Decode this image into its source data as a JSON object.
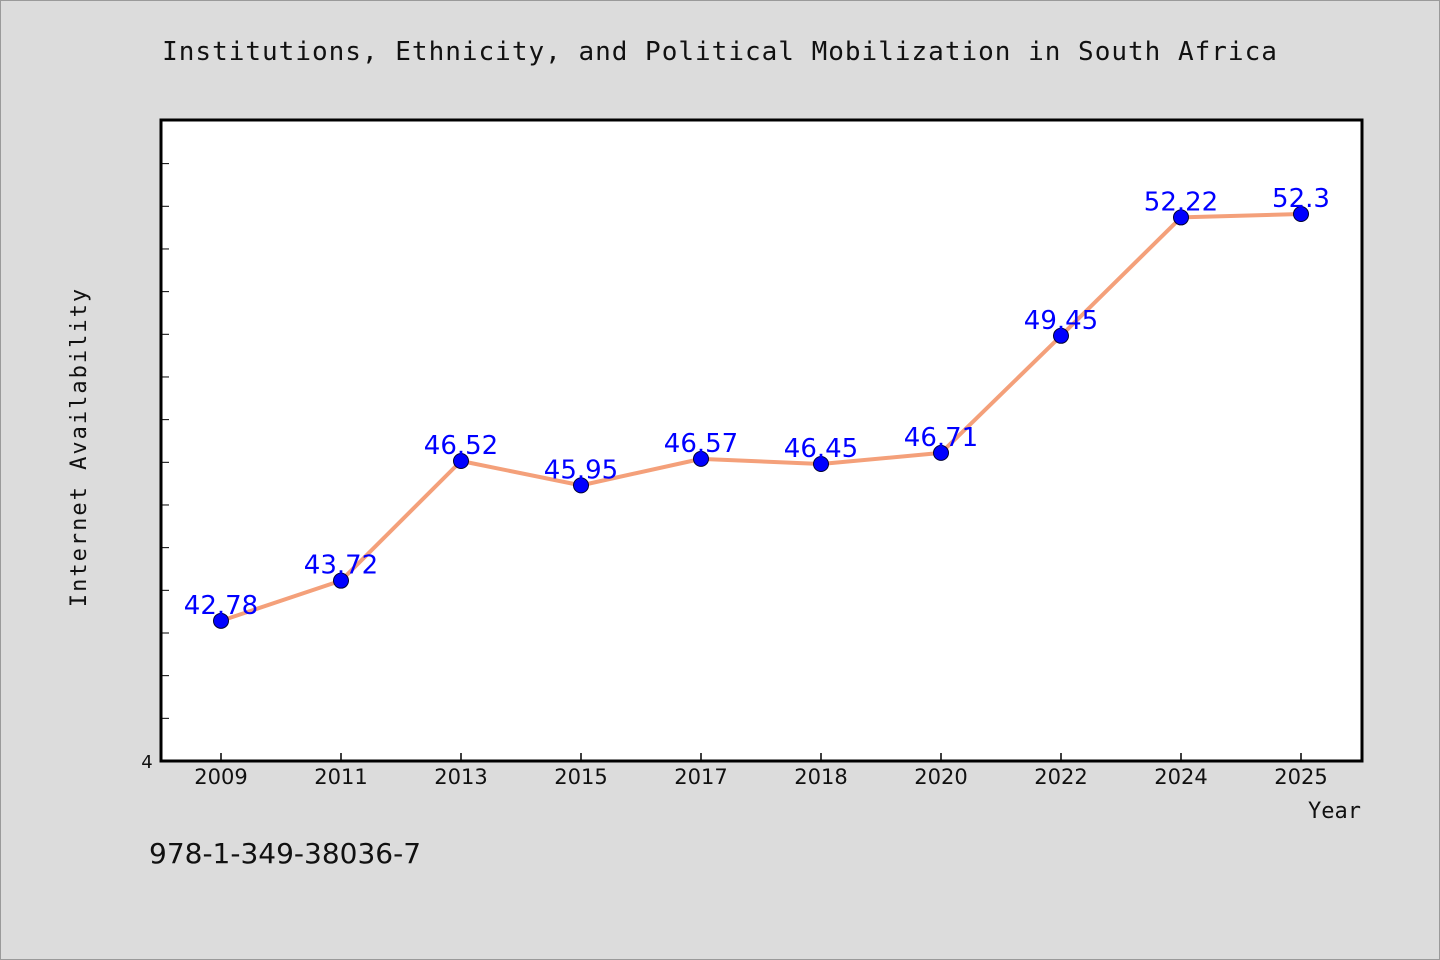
{
  "chart_data": {
    "type": "line",
    "title": "Institutions, Ethnicity, and Political Mobilization in South Africa",
    "xlabel": "Year",
    "ylabel": "Internet Availability",
    "categories": [
      "2009",
      "2011",
      "2013",
      "2015",
      "2017",
      "2018",
      "2020",
      "2022",
      "2024",
      "2025"
    ],
    "series": [
      {
        "values": [
          42.78,
          43.72,
          46.52,
          45.95,
          46.57,
          46.45,
          46.71,
          49.45,
          52.22,
          52.3
        ]
      }
    ],
    "data_labels": [
      "42.78",
      "43.72",
      "46.52",
      "45.95",
      "46.57",
      "46.45",
      "46.71",
      "49.45",
      "52.22",
      "52.3"
    ],
    "ylim": [
      39.5,
      54.5
    ],
    "y_tick_label": "4",
    "grid": false,
    "colors": {
      "line": "#f4a07a",
      "marker": "#0000ff",
      "label": "#0000ff",
      "background": "#dcdcdc",
      "plot": "#ffffff"
    }
  },
  "footer": {
    "isbn": "978-1-349-38036-7"
  }
}
